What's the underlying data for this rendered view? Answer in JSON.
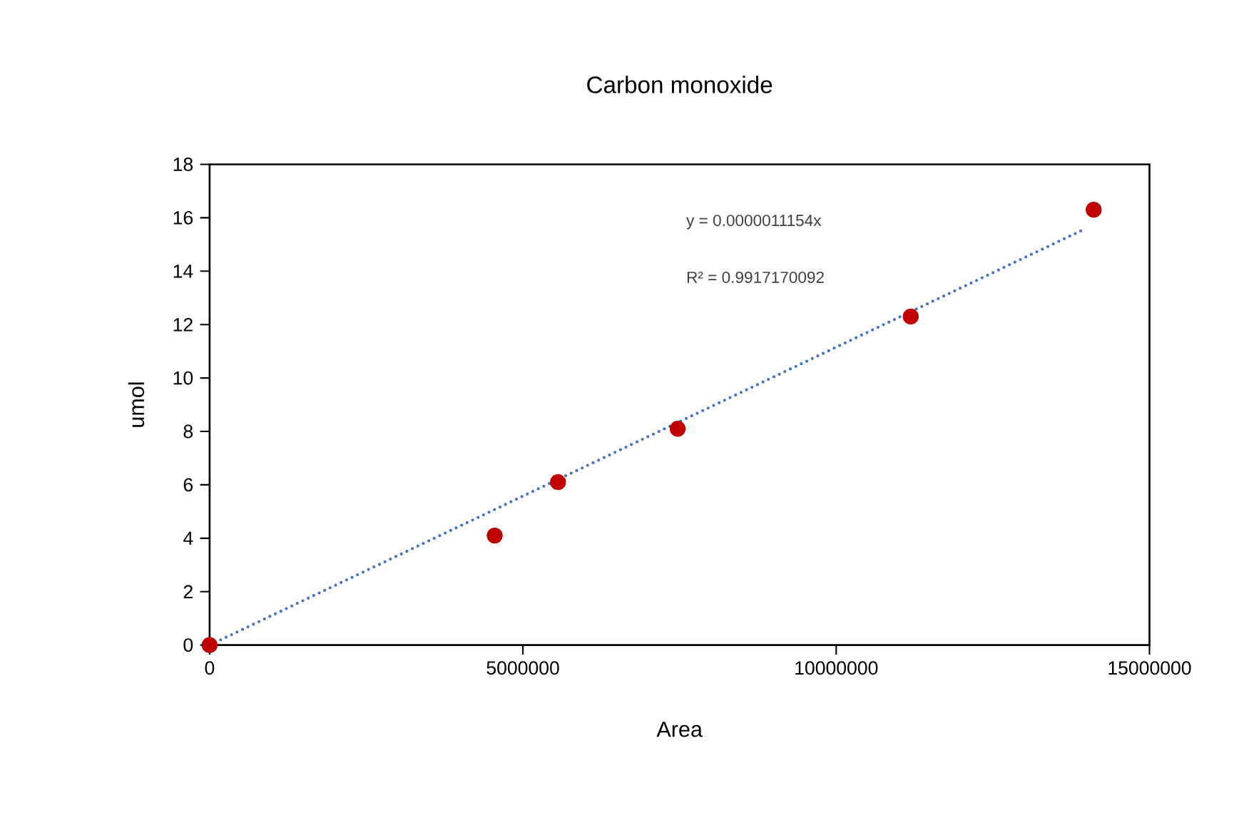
{
  "chart_data": {
    "type": "scatter",
    "title": "Carbon monoxide",
    "xlabel": "Area",
    "ylabel": "umol",
    "series": [
      {
        "color": "#c00000",
        "marker": "circle",
        "x": [
          0,
          4550000,
          5560000,
          7470000,
          11190000,
          14110000
        ],
        "values": [
          0,
          4.1,
          6.1,
          8.1,
          12.3,
          16.3
        ]
      },
      {
        "type": "line",
        "color": "#4472c4",
        "line_style": "dotted",
        "marker": "none",
        "x": [
          0,
          13950000
        ],
        "values": [
          0,
          15.56
        ]
      }
    ],
    "annotations": [
      "y = 0.0000011154x",
      "R² = 0.9917170092"
    ],
    "xlim": [
      0,
      15000000
    ],
    "xticks": [
      0,
      5000000,
      10000000,
      15000000
    ],
    "ylim": [
      0,
      18
    ],
    "yticks": [
      0,
      2,
      4,
      6,
      8,
      10,
      12,
      14,
      16,
      18
    ],
    "grid": false
  }
}
